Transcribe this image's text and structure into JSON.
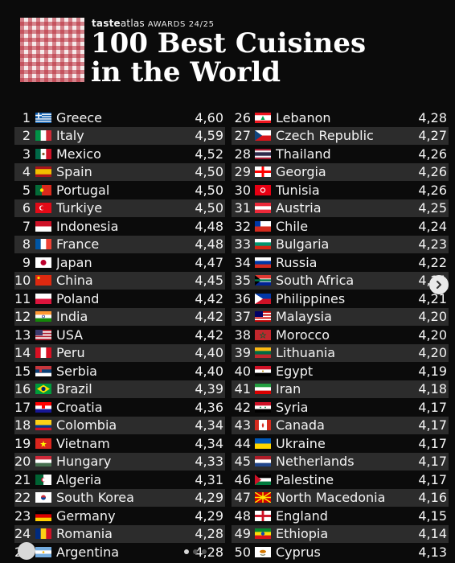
{
  "header": {
    "brand_bold": "taste",
    "brand_light": "atlas",
    "awards": "AWARDS 24/25",
    "title_line1": "100 Best Cuisines",
    "title_line2": "in the World"
  },
  "rankings_left": [
    {
      "rank": "1",
      "country": "Greece",
      "score": "4,60",
      "flag": "greece-flag"
    },
    {
      "rank": "2",
      "country": "Italy",
      "score": "4,59",
      "flag": "italy-flag"
    },
    {
      "rank": "3",
      "country": "Mexico",
      "score": "4,52",
      "flag": "mexico-flag"
    },
    {
      "rank": "4",
      "country": "Spain",
      "score": "4,50",
      "flag": "spain-flag"
    },
    {
      "rank": "5",
      "country": "Portugal",
      "score": "4,50",
      "flag": "portugal-flag"
    },
    {
      "rank": "6",
      "country": "Turkiye",
      "score": "4,50",
      "flag": "turkiye-flag"
    },
    {
      "rank": "7",
      "country": "Indonesia",
      "score": "4,48",
      "flag": "indonesia-flag"
    },
    {
      "rank": "8",
      "country": "France",
      "score": "4,48",
      "flag": "france-flag"
    },
    {
      "rank": "9",
      "country": "Japan",
      "score": "4,47",
      "flag": "japan-flag"
    },
    {
      "rank": "10",
      "country": "China",
      "score": "4,45",
      "flag": "china-flag"
    },
    {
      "rank": "11",
      "country": "Poland",
      "score": "4,42",
      "flag": "poland-flag"
    },
    {
      "rank": "12",
      "country": "India",
      "score": "4,42",
      "flag": "india-flag"
    },
    {
      "rank": "13",
      "country": "USA",
      "score": "4,42",
      "flag": "usa-flag"
    },
    {
      "rank": "14",
      "country": "Peru",
      "score": "4,40",
      "flag": "peru-flag"
    },
    {
      "rank": "15",
      "country": "Serbia",
      "score": "4,40",
      "flag": "serbia-flag"
    },
    {
      "rank": "16",
      "country": "Brazil",
      "score": "4,39",
      "flag": "brazil-flag"
    },
    {
      "rank": "17",
      "country": "Croatia",
      "score": "4,36",
      "flag": "croatia-flag"
    },
    {
      "rank": "18",
      "country": "Colombia",
      "score": "4,34",
      "flag": "colombia-flag"
    },
    {
      "rank": "19",
      "country": "Vietnam",
      "score": "4,34",
      "flag": "vietnam-flag"
    },
    {
      "rank": "20",
      "country": "Hungary",
      "score": "4,33",
      "flag": "hungary-flag"
    },
    {
      "rank": "21",
      "country": "Algeria",
      "score": "4,31",
      "flag": "algeria-flag"
    },
    {
      "rank": "22",
      "country": "South Korea",
      "score": "4,29",
      "flag": "south-korea-flag"
    },
    {
      "rank": "23",
      "country": "Germany",
      "score": "4,29",
      "flag": "germany-flag"
    },
    {
      "rank": "24",
      "country": "Romania",
      "score": "4,28",
      "flag": "romania-flag"
    },
    {
      "rank": "25",
      "country": "Argentina",
      "score": "4,28",
      "flag": "argentina-flag"
    }
  ],
  "rankings_right": [
    {
      "rank": "26",
      "country": "Lebanon",
      "score": "4,28",
      "flag": "lebanon-flag"
    },
    {
      "rank": "27",
      "country": "Czech Republic",
      "score": "4,27",
      "flag": "czech-republic-flag"
    },
    {
      "rank": "28",
      "country": "Thailand",
      "score": "4,26",
      "flag": "thailand-flag"
    },
    {
      "rank": "29",
      "country": "Georgia",
      "score": "4,26",
      "flag": "georgia-flag"
    },
    {
      "rank": "30",
      "country": "Tunisia",
      "score": "4,26",
      "flag": "tunisia-flag"
    },
    {
      "rank": "31",
      "country": "Austria",
      "score": "4,25",
      "flag": "austria-flag"
    },
    {
      "rank": "32",
      "country": "Chile",
      "score": "4,24",
      "flag": "chile-flag"
    },
    {
      "rank": "33",
      "country": "Bulgaria",
      "score": "4,23",
      "flag": "bulgaria-flag"
    },
    {
      "rank": "34",
      "country": "Russia",
      "score": "4,22",
      "flag": "russia-flag"
    },
    {
      "rank": "35",
      "country": "South Africa",
      "score": "4,21",
      "flag": "south-africa-flag"
    },
    {
      "rank": "36",
      "country": "Philippines",
      "score": "4,21",
      "flag": "philippines-flag"
    },
    {
      "rank": "37",
      "country": "Malaysia",
      "score": "4,20",
      "flag": "malaysia-flag"
    },
    {
      "rank": "38",
      "country": "Morocco",
      "score": "4,20",
      "flag": "morocco-flag"
    },
    {
      "rank": "39",
      "country": "Lithuania",
      "score": "4,20",
      "flag": "lithuania-flag"
    },
    {
      "rank": "40",
      "country": "Egypt",
      "score": "4,19",
      "flag": "egypt-flag"
    },
    {
      "rank": "41",
      "country": "Iran",
      "score": "4,18",
      "flag": "iran-flag"
    },
    {
      "rank": "42",
      "country": "Syria",
      "score": "4,17",
      "flag": "syria-flag"
    },
    {
      "rank": "43",
      "country": "Canada",
      "score": "4,17",
      "flag": "canada-flag"
    },
    {
      "rank": "44",
      "country": "Ukraine",
      "score": "4,17",
      "flag": "ukraine-flag"
    },
    {
      "rank": "45",
      "country": "Netherlands",
      "score": "4,17",
      "flag": "netherlands-flag"
    },
    {
      "rank": "46",
      "country": "Palestine",
      "score": "4,17",
      "flag": "palestine-flag"
    },
    {
      "rank": "47",
      "country": "North Macedonia",
      "score": "4,16",
      "flag": "north-macedonia-flag"
    },
    {
      "rank": "48",
      "country": "England",
      "score": "4,15",
      "flag": "england-flag"
    },
    {
      "rank": "49",
      "country": "Ethiopia",
      "score": "4,14",
      "flag": "ethiopia-flag"
    },
    {
      "rank": "50",
      "country": "Cyprus",
      "score": "4,13",
      "flag": "cyprus-flag"
    }
  ],
  "controls": {
    "next_icon": "chevron-right-icon",
    "page_dots": 3,
    "active_dot": 0
  },
  "colors": {
    "background": "#0b0b0b",
    "row_stripe": "#2c2c2c",
    "text": "#f3f3f3",
    "logo_red": "#b82c3a"
  }
}
